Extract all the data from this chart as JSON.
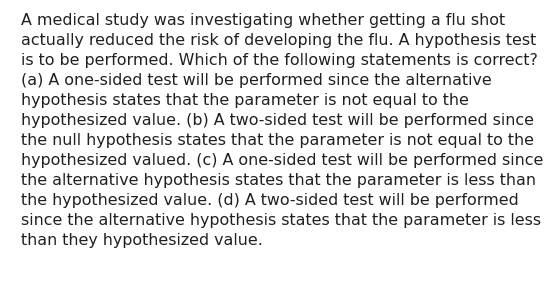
{
  "lines": [
    "A medical study was investigating whether getting a flu shot",
    "actually reduced the risk of developing the flu. A hypothesis test",
    "is to be performed. Which of the following statements is correct?",
    "(a) A one-sided test will be performed since the alternative",
    "hypothesis states that the parameter is not equal to the",
    "hypothesized value. (b) A two-sided test will be performed since",
    "the null hypothesis states that the parameter is not equal to the",
    "hypothesized valued. (c) A one-sided test will be performed since",
    "the alternative hypothesis states that the parameter is less than",
    "the hypothesized value. (d) A two-sided test will be performed",
    "since the alternative hypothesis states that the parameter is less",
    "than they hypothesized value."
  ],
  "background_color": "#ffffff",
  "text_color": "#231f20",
  "font_size": 11.4,
  "font_family": "DejaVu Sans",
  "fig_width": 5.58,
  "fig_height": 2.93,
  "dpi": 100
}
